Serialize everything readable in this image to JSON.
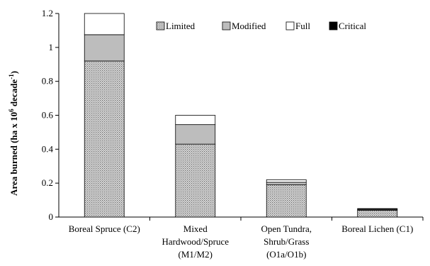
{
  "chart_data": {
    "type": "bar",
    "stacked": true,
    "categories": [
      [
        "Boreal Spruce (C2)"
      ],
      [
        "Mixed",
        "Hardwood/Spruce",
        "(M1/M2)"
      ],
      [
        "Open Tundra,",
        "Shrub/Grass",
        "(O1a/O1b)"
      ],
      [
        "Boreal Lichen (C1)"
      ]
    ],
    "series": [
      {
        "name": "Limited",
        "color": "#b8b8b8",
        "pattern": "dotted",
        "values": [
          0.92,
          0.43,
          0.19,
          0.04
        ]
      },
      {
        "name": "Modified",
        "color": "#bdbdbd",
        "pattern": "solid",
        "values": [
          0.155,
          0.115,
          0.015,
          0.005
        ]
      },
      {
        "name": "Full",
        "color": "#ffffff",
        "pattern": "solid",
        "values": [
          0.125,
          0.055,
          0.015,
          0.003
        ]
      },
      {
        "name": "Critical",
        "color": "#000000",
        "pattern": "solid",
        "values": [
          0.0,
          0.0,
          0.0,
          0.002
        ]
      }
    ],
    "ylabel_main": "Area burned (ha x 10",
    "ylabel_exp1": "6",
    "ylabel_mid": " decade",
    "ylabel_exp2": "-1",
    "ylabel_end": ")",
    "ylim": [
      0,
      1.2
    ],
    "yticks": [
      0,
      0.2,
      0.4,
      0.6,
      0.8,
      1,
      1.2
    ],
    "ytick_labels": [
      "0",
      "0.2",
      "0.4",
      "0.6",
      "0.8",
      "1",
      "1.2"
    ],
    "legend_position": "top-right",
    "grid": false
  }
}
